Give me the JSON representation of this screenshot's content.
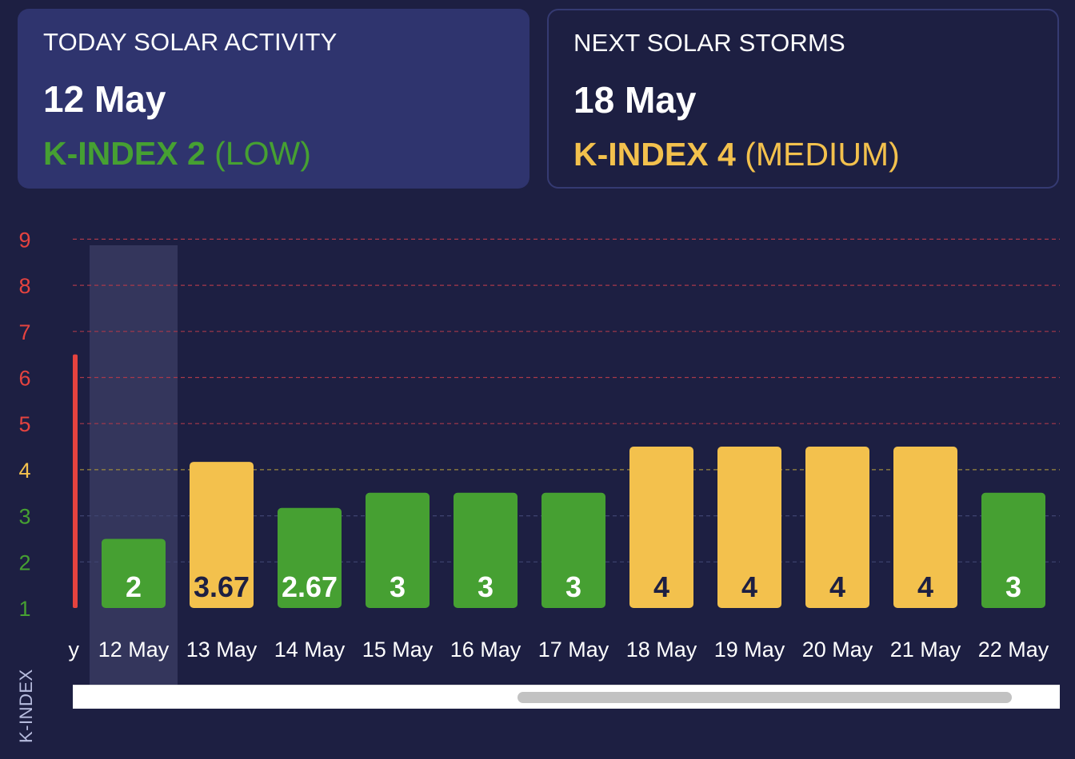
{
  "cards": {
    "today": {
      "title": "TODAY SOLAR ACTIVITY",
      "date": "12 May",
      "kindex_label": "K-INDEX 2",
      "kindex_level": "(LOW)",
      "color": "#46a032"
    },
    "next": {
      "title": "NEXT SOLAR STORMS",
      "date": "18 May",
      "kindex_label": "K-INDEX 4",
      "kindex_level": "(MEDIUM)",
      "color": "#f3c14d"
    }
  },
  "chart_data": {
    "type": "bar",
    "ylabel": "K-INDEX",
    "ylim": [
      1,
      9
    ],
    "yticks": [
      1,
      2,
      3,
      4,
      5,
      6,
      7,
      8,
      9
    ],
    "grid": true,
    "highlighted_category": "12 May",
    "partial_left_label": "y",
    "partial_left_value": 6.5,
    "categories": [
      "12 May",
      "13 May",
      "14 May",
      "15 May",
      "16 May",
      "17 May",
      "18 May",
      "19 May",
      "20 May",
      "21 May",
      "22 May"
    ],
    "values": [
      2,
      3.67,
      2.67,
      3,
      3,
      3,
      4,
      4,
      4,
      4,
      3
    ],
    "colors": {
      "low": "#46a032",
      "medium": "#f3c14d",
      "high": "#e5433f",
      "highlight": "#34365c"
    }
  }
}
